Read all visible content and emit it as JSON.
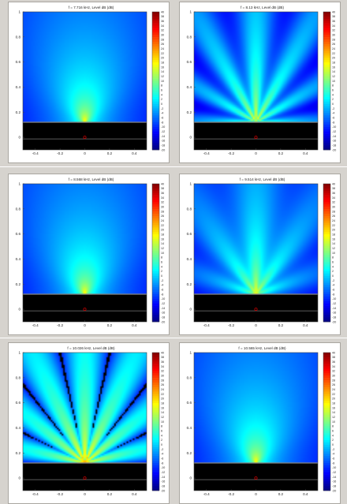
{
  "chart_data": [
    {
      "type": "heatmap",
      "title": "f = 7.716 kHz, Level dB  (dB)",
      "field": "directivity-smooth-single-lobe",
      "x": {
        "lim": [
          -0.5,
          0.5
        ],
        "ticks": [
          -0.4,
          -0.2,
          0,
          0.2,
          0.4
        ]
      },
      "y": {
        "lim": [
          -0.1,
          1.0
        ],
        "ticks": [
          0,
          0.2,
          0.4,
          0.6,
          0.8,
          1
        ]
      },
      "colorbar": {
        "lim": [
          -20,
          40
        ],
        "ticks": [
          40,
          38,
          36,
          34,
          32,
          30,
          28,
          26,
          24,
          22,
          20,
          18,
          16,
          14,
          12,
          10,
          8,
          6,
          4,
          2,
          0,
          -2,
          -4,
          -6,
          -8,
          -10,
          -12,
          -14,
          -16,
          -18,
          -20
        ]
      }
    },
    {
      "type": "heatmap",
      "title": "f = 8.13 kHz, Level dB  (dB)",
      "field": "directivity-narrow-with-side-lobes",
      "x": {
        "lim": [
          -0.5,
          0.5
        ],
        "ticks": [
          -0.4,
          -0.2,
          0,
          0.2,
          0.4
        ]
      },
      "y": {
        "lim": [
          -0.1,
          1.0
        ],
        "ticks": [
          0,
          0.2,
          0.4,
          0.6,
          0.8,
          1
        ]
      },
      "colorbar": {
        "lim": [
          -20,
          40
        ],
        "ticks": [
          40,
          38,
          36,
          34,
          32,
          30,
          28,
          26,
          24,
          22,
          20,
          18,
          16,
          14,
          12,
          10,
          8,
          6,
          4,
          2,
          0,
          -2,
          -4,
          -6,
          -8,
          -10,
          -12,
          -14,
          -16,
          -18,
          -20
        ]
      }
    },
    {
      "type": "heatmap",
      "title": "f = 8.568 kHz, Level dB  (dB)",
      "field": "directivity-smooth-single-lobe",
      "x": {
        "lim": [
          -0.5,
          0.5
        ],
        "ticks": [
          -0.4,
          -0.2,
          0,
          0.2,
          0.4
        ]
      },
      "y": {
        "lim": [
          -0.1,
          1.0
        ],
        "ticks": [
          0,
          0.2,
          0.4,
          0.6,
          0.8,
          1
        ]
      },
      "colorbar": {
        "lim": [
          -20,
          40
        ],
        "ticks": [
          40,
          38,
          36,
          34,
          32,
          30,
          28,
          26,
          24,
          22,
          20,
          18,
          16,
          14,
          12,
          10,
          8,
          6,
          4,
          2,
          0,
          -2,
          -4,
          -6,
          -8,
          -10,
          -12,
          -14,
          -16,
          -18,
          -20
        ]
      }
    },
    {
      "type": "heatmap",
      "title": "f = 9.514 kHz, Level dB  (dB)",
      "field": "directivity-smooth-with-faint-lobes",
      "x": {
        "lim": [
          -0.5,
          0.5
        ],
        "ticks": [
          -0.4,
          -0.2,
          0,
          0.2,
          0.4
        ]
      },
      "y": {
        "lim": [
          -0.1,
          1.0
        ],
        "ticks": [
          0,
          0.2,
          0.4,
          0.6,
          0.8,
          1
        ]
      },
      "colorbar": {
        "lim": [
          -20,
          40
        ],
        "ticks": [
          40,
          38,
          36,
          34,
          32,
          30,
          28,
          26,
          24,
          22,
          20,
          18,
          16,
          14,
          12,
          10,
          8,
          6,
          4,
          2,
          0,
          -2,
          -4,
          -6,
          -8,
          -10,
          -12,
          -14,
          -16,
          -18,
          -20
        ]
      }
    },
    {
      "type": "heatmap",
      "title": "f = 10.026 kHz, Level dB  (dB)",
      "field": "directivity-multi-lobe-fan",
      "x": {
        "lim": [
          -0.5,
          0.5
        ],
        "ticks": [
          -0.4,
          -0.2,
          0,
          0.2,
          0.4
        ]
      },
      "y": {
        "lim": [
          -0.1,
          1.0
        ],
        "ticks": [
          0,
          0.2,
          0.4,
          0.6,
          0.8,
          1
        ]
      },
      "colorbar": {
        "lim": [
          -20,
          40
        ],
        "ticks": [
          40,
          38,
          36,
          34,
          32,
          30,
          28,
          26,
          24,
          22,
          20,
          18,
          16,
          14,
          12,
          10,
          8,
          6,
          4,
          2,
          0,
          -2,
          -4,
          -6,
          -8,
          -10,
          -12,
          -14,
          -16,
          -18,
          -20
        ]
      }
    },
    {
      "type": "heatmap",
      "title": "f = 10.565 kHz, Level dB  (dB)",
      "field": "directivity-smooth-single-lobe",
      "x": {
        "lim": [
          -0.5,
          0.5
        ],
        "ticks": [
          -0.4,
          -0.2,
          0,
          0.2,
          0.4
        ]
      },
      "y": {
        "lim": [
          -0.1,
          1.0
        ],
        "ticks": [
          0,
          0.2,
          0.4,
          0.6,
          0.8,
          1
        ]
      },
      "colorbar": {
        "lim": [
          -20,
          40
        ],
        "ticks": [
          40,
          38,
          36,
          34,
          32,
          30,
          28,
          26,
          24,
          22,
          20,
          18,
          16,
          14,
          12,
          10,
          8,
          6,
          4,
          2,
          0,
          -2,
          -4,
          -6,
          -8,
          -10,
          -12,
          -14,
          -16,
          -18,
          -20
        ]
      }
    }
  ],
  "colors": {
    "background": "#d6d3ce",
    "panel": "#ffffff",
    "baffle": "#000000",
    "source_marker": "#c00000"
  }
}
